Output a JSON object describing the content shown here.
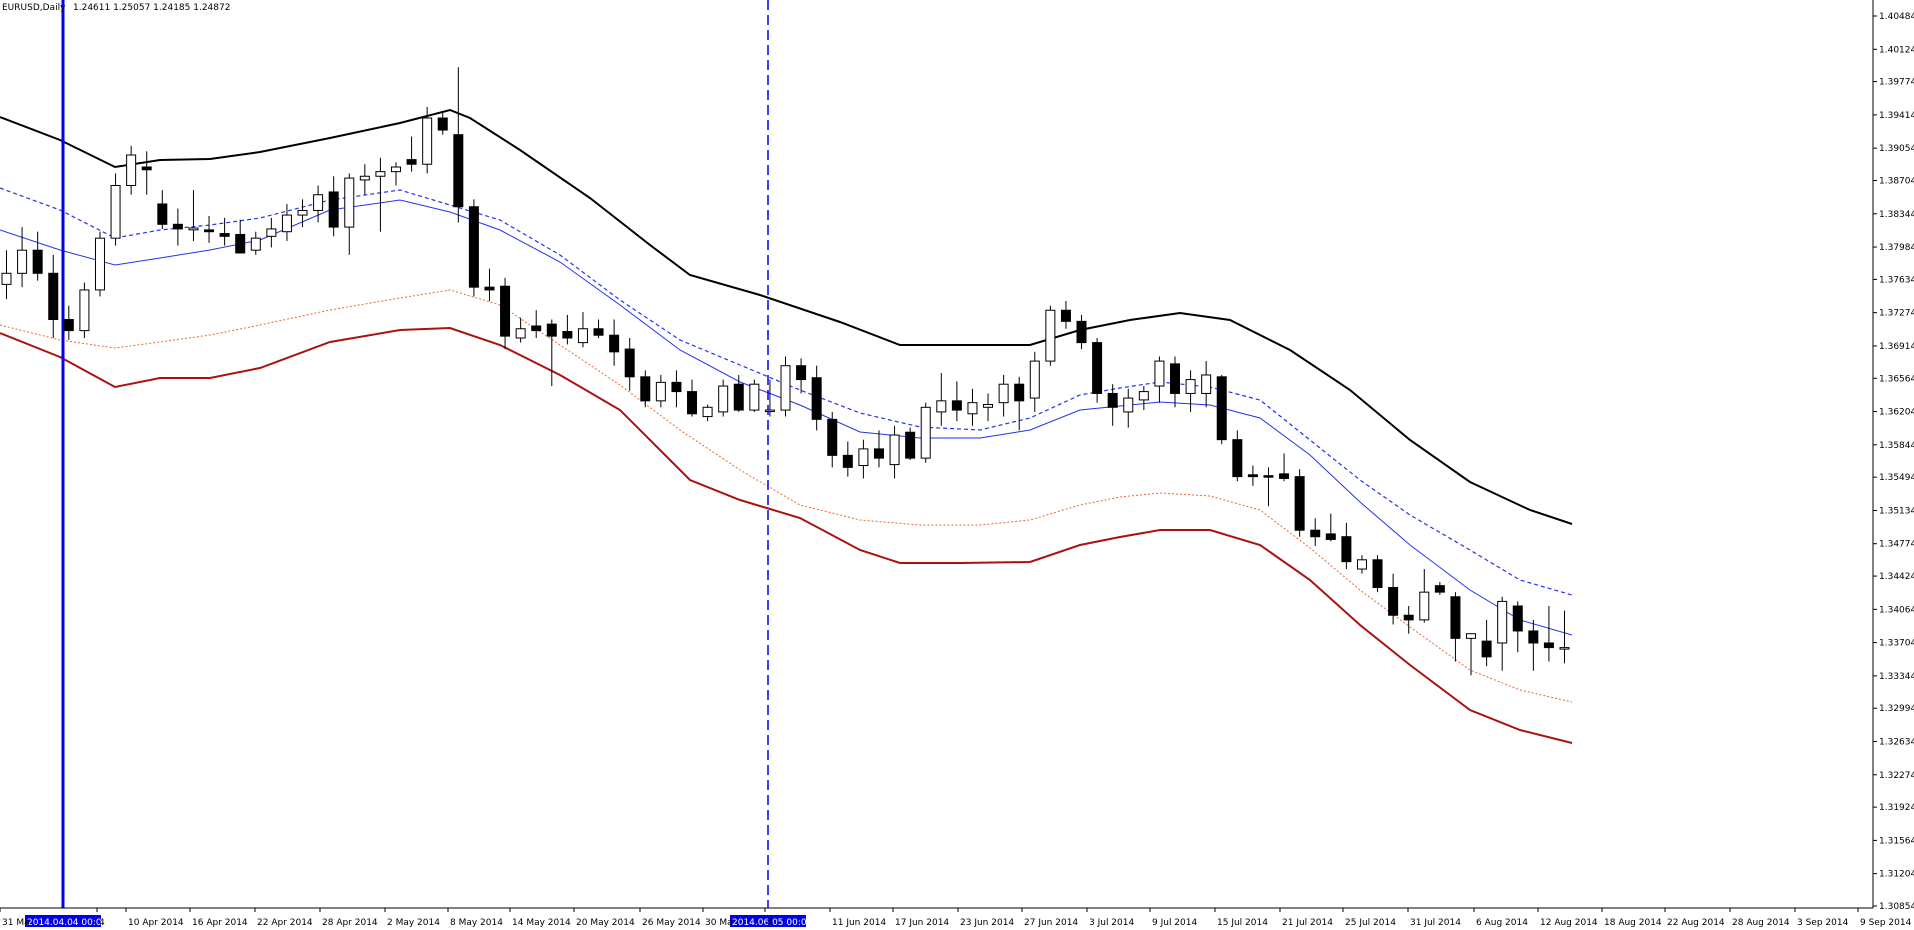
{
  "chart_info": {
    "symbol": "EURUSD,Daily",
    "ohlc": "1.24611 1.25057 1.24185 1.24872"
  },
  "markers": {
    "left_label": "2014.04.04 00:00",
    "right_label": "2014.06.05 00:00"
  },
  "colors": {
    "bull_body": "#ffffff",
    "bear_body": "#000000",
    "upper_band": "#000000",
    "lower_band": "#aa1111",
    "mid_blue": "#2233ee",
    "lower_dotted": "#ee6633",
    "marker": "#0000ee"
  },
  "chart_data": {
    "type": "candlestick",
    "price_axis_ticks": [
      "1.40484",
      "1.40124",
      "1.39774",
      "1.39414",
      "1.39054",
      "1.38704",
      "1.38344",
      "1.37984",
      "1.37634",
      "1.37274",
      "1.36914",
      "1.36564",
      "1.36204",
      "1.35844",
      "1.35494",
      "1.35134",
      "1.34774",
      "1.34424",
      "1.34064",
      "1.33704",
      "1.33344",
      "1.32994",
      "1.32634",
      "1.32274",
      "1.31924",
      "1.31564",
      "1.31204",
      "1.30854"
    ],
    "date_axis_labels": [
      "31 Ma",
      "4",
      "10 Apr 2014",
      "16 Apr 2014",
      "22 Apr 2014",
      "28 Apr 2014",
      "2 May 2014",
      "8 May 2014",
      "14 May 2014",
      "20 May 2014",
      "26 May 2014",
      "30 Ma",
      "4",
      "11 Jun 2014",
      "17 Jun 2014",
      "23 Jun 2014",
      "27 Jun 2014",
      "3 Jul 2014",
      "9 Jul 2014",
      "15 Jul 2014",
      "21 Jul 2014",
      "25 Jul 2014",
      "31 Jul 2014",
      "6 Aug 2014",
      "12 Aug 2014",
      "18 Aug 2014",
      "22 Aug 2014",
      "28 Aug 2014",
      "3 Sep 2014",
      "9 Sep 2014"
    ],
    "candles": [
      {
        "o": 1.3758,
        "h": 1.3795,
        "l": 1.3742,
        "c": 1.377
      },
      {
        "o": 1.377,
        "h": 1.382,
        "l": 1.3755,
        "c": 1.3795
      },
      {
        "o": 1.3795,
        "h": 1.3815,
        "l": 1.3762,
        "c": 1.377
      },
      {
        "o": 1.377,
        "h": 1.379,
        "l": 1.37,
        "c": 1.372
      },
      {
        "o": 1.372,
        "h": 1.3735,
        "l": 1.3698,
        "c": 1.3708
      },
      {
        "o": 1.3708,
        "h": 1.376,
        "l": 1.37,
        "c": 1.3752
      },
      {
        "o": 1.3752,
        "h": 1.3815,
        "l": 1.3745,
        "c": 1.3808
      },
      {
        "o": 1.3808,
        "h": 1.3878,
        "l": 1.38,
        "c": 1.3865
      },
      {
        "o": 1.3865,
        "h": 1.3908,
        "l": 1.3855,
        "c": 1.3898
      },
      {
        "o": 1.3885,
        "h": 1.3902,
        "l": 1.3855,
        "c": 1.3882
      },
      {
        "o": 1.3845,
        "h": 1.386,
        "l": 1.3818,
        "c": 1.3823
      },
      {
        "o": 1.3823,
        "h": 1.384,
        "l": 1.38,
        "c": 1.3818
      },
      {
        "o": 1.3817,
        "h": 1.386,
        "l": 1.3805,
        "c": 1.3819
      },
      {
        "o": 1.3817,
        "h": 1.3832,
        "l": 1.3803,
        "c": 1.3815
      },
      {
        "o": 1.3813,
        "h": 1.383,
        "l": 1.38,
        "c": 1.381
      },
      {
        "o": 1.3812,
        "h": 1.3828,
        "l": 1.3792,
        "c": 1.3792
      },
      {
        "o": 1.3795,
        "h": 1.3815,
        "l": 1.379,
        "c": 1.3808
      },
      {
        "o": 1.381,
        "h": 1.383,
        "l": 1.3798,
        "c": 1.3818
      },
      {
        "o": 1.3815,
        "h": 1.3845,
        "l": 1.3805,
        "c": 1.3833
      },
      {
        "o": 1.3833,
        "h": 1.385,
        "l": 1.382,
        "c": 1.3838
      },
      {
        "o": 1.3838,
        "h": 1.3865,
        "l": 1.3825,
        "c": 1.3855
      },
      {
        "o": 1.3858,
        "h": 1.3875,
        "l": 1.381,
        "c": 1.382
      },
      {
        "o": 1.382,
        "h": 1.3878,
        "l": 1.379,
        "c": 1.3873
      },
      {
        "o": 1.3871,
        "h": 1.3888,
        "l": 1.3855,
        "c": 1.3875
      },
      {
        "o": 1.3875,
        "h": 1.3895,
        "l": 1.3815,
        "c": 1.388
      },
      {
        "o": 1.388,
        "h": 1.389,
        "l": 1.3865,
        "c": 1.3885
      },
      {
        "o": 1.3893,
        "h": 1.3918,
        "l": 1.388,
        "c": 1.3888
      },
      {
        "o": 1.3888,
        "h": 1.395,
        "l": 1.3878,
        "c": 1.3938
      },
      {
        "o": 1.3938,
        "h": 1.3945,
        "l": 1.392,
        "c": 1.3925
      },
      {
        "o": 1.392,
        "h": 1.3993,
        "l": 1.3825,
        "c": 1.3842
      },
      {
        "o": 1.3842,
        "h": 1.385,
        "l": 1.3745,
        "c": 1.3755
      },
      {
        "o": 1.3755,
        "h": 1.3775,
        "l": 1.374,
        "c": 1.3752
      },
      {
        "o": 1.3756,
        "h": 1.3765,
        "l": 1.3688,
        "c": 1.3702
      },
      {
        "o": 1.37,
        "h": 1.3722,
        "l": 1.3695,
        "c": 1.371
      },
      {
        "o": 1.3713,
        "h": 1.373,
        "l": 1.37,
        "c": 1.3708
      },
      {
        "o": 1.3715,
        "h": 1.372,
        "l": 1.3648,
        "c": 1.3702
      },
      {
        "o": 1.3707,
        "h": 1.3725,
        "l": 1.3693,
        "c": 1.37
      },
      {
        "o": 1.3695,
        "h": 1.3728,
        "l": 1.369,
        "c": 1.371
      },
      {
        "o": 1.371,
        "h": 1.372,
        "l": 1.37,
        "c": 1.3703
      },
      {
        "o": 1.3703,
        "h": 1.372,
        "l": 1.367,
        "c": 1.3685
      },
      {
        "o": 1.3688,
        "h": 1.37,
        "l": 1.3643,
        "c": 1.3658
      },
      {
        "o": 1.3658,
        "h": 1.3665,
        "l": 1.3625,
        "c": 1.3632
      },
      {
        "o": 1.3632,
        "h": 1.366,
        "l": 1.3625,
        "c": 1.3652
      },
      {
        "o": 1.3652,
        "h": 1.3665,
        "l": 1.3625,
        "c": 1.3642
      },
      {
        "o": 1.3642,
        "h": 1.3655,
        "l": 1.3615,
        "c": 1.3618
      },
      {
        "o": 1.3615,
        "h": 1.3628,
        "l": 1.361,
        "c": 1.3625
      },
      {
        "o": 1.362,
        "h": 1.3655,
        "l": 1.3615,
        "c": 1.3648
      },
      {
        "o": 1.365,
        "h": 1.366,
        "l": 1.362,
        "c": 1.3622
      },
      {
        "o": 1.3622,
        "h": 1.3655,
        "l": 1.362,
        "c": 1.365
      },
      {
        "o": 1.3622,
        "h": 1.3655,
        "l": 1.3615,
        "c": 1.3622
      },
      {
        "o": 1.3622,
        "h": 1.368,
        "l": 1.3615,
        "c": 1.367
      },
      {
        "o": 1.367,
        "h": 1.3678,
        "l": 1.364,
        "c": 1.3655
      },
      {
        "o": 1.3657,
        "h": 1.367,
        "l": 1.36,
        "c": 1.3612
      },
      {
        "o": 1.3612,
        "h": 1.362,
        "l": 1.356,
        "c": 1.3573
      },
      {
        "o": 1.3573,
        "h": 1.3588,
        "l": 1.355,
        "c": 1.356
      },
      {
        "o": 1.3562,
        "h": 1.359,
        "l": 1.3548,
        "c": 1.358
      },
      {
        "o": 1.358,
        "h": 1.36,
        "l": 1.356,
        "c": 1.357
      },
      {
        "o": 1.3563,
        "h": 1.3605,
        "l": 1.3548,
        "c": 1.3595
      },
      {
        "o": 1.3598,
        "h": 1.3603,
        "l": 1.3568,
        "c": 1.357
      },
      {
        "o": 1.357,
        "h": 1.363,
        "l": 1.3565,
        "c": 1.3625
      },
      {
        "o": 1.362,
        "h": 1.3662,
        "l": 1.3605,
        "c": 1.3632
      },
      {
        "o": 1.3632,
        "h": 1.3653,
        "l": 1.361,
        "c": 1.3622
      },
      {
        "o": 1.3618,
        "h": 1.3645,
        "l": 1.3605,
        "c": 1.363
      },
      {
        "o": 1.3625,
        "h": 1.364,
        "l": 1.361,
        "c": 1.3628
      },
      {
        "o": 1.363,
        "h": 1.366,
        "l": 1.3615,
        "c": 1.365
      },
      {
        "o": 1.365,
        "h": 1.3658,
        "l": 1.36,
        "c": 1.3632
      },
      {
        "o": 1.3635,
        "h": 1.3685,
        "l": 1.362,
        "c": 1.3675
      },
      {
        "o": 1.3675,
        "h": 1.3735,
        "l": 1.367,
        "c": 1.373
      },
      {
        "o": 1.373,
        "h": 1.374,
        "l": 1.371,
        "c": 1.3718
      },
      {
        "o": 1.3718,
        "h": 1.3725,
        "l": 1.3688,
        "c": 1.3695
      },
      {
        "o": 1.3695,
        "h": 1.37,
        "l": 1.363,
        "c": 1.364
      },
      {
        "o": 1.364,
        "h": 1.365,
        "l": 1.3605,
        "c": 1.3625
      },
      {
        "o": 1.362,
        "h": 1.3645,
        "l": 1.3603,
        "c": 1.3635
      },
      {
        "o": 1.3633,
        "h": 1.3648,
        "l": 1.3622,
        "c": 1.3642
      },
      {
        "o": 1.3648,
        "h": 1.368,
        "l": 1.363,
        "c": 1.3675
      },
      {
        "o": 1.3672,
        "h": 1.368,
        "l": 1.3625,
        "c": 1.364
      },
      {
        "o": 1.364,
        "h": 1.3665,
        "l": 1.362,
        "c": 1.3655
      },
      {
        "o": 1.364,
        "h": 1.3675,
        "l": 1.3625,
        "c": 1.366
      },
      {
        "o": 1.3658,
        "h": 1.366,
        "l": 1.3585,
        "c": 1.359
      },
      {
        "o": 1.359,
        "h": 1.36,
        "l": 1.3545,
        "c": 1.355
      },
      {
        "o": 1.3552,
        "h": 1.3562,
        "l": 1.354,
        "c": 1.355
      },
      {
        "o": 1.3551,
        "h": 1.356,
        "l": 1.3518,
        "c": 1.355
      },
      {
        "o": 1.3553,
        "h": 1.3575,
        "l": 1.3545,
        "c": 1.3548
      },
      {
        "o": 1.355,
        "h": 1.3558,
        "l": 1.3485,
        "c": 1.3492
      },
      {
        "o": 1.3492,
        "h": 1.3505,
        "l": 1.3475,
        "c": 1.3485
      },
      {
        "o": 1.3488,
        "h": 1.351,
        "l": 1.348,
        "c": 1.3482
      },
      {
        "o": 1.3485,
        "h": 1.35,
        "l": 1.345,
        "c": 1.3458
      },
      {
        "o": 1.345,
        "h": 1.3465,
        "l": 1.3445,
        "c": 1.346
      },
      {
        "o": 1.346,
        "h": 1.3465,
        "l": 1.3425,
        "c": 1.343
      },
      {
        "o": 1.343,
        "h": 1.3445,
        "l": 1.339,
        "c": 1.34
      },
      {
        "o": 1.34,
        "h": 1.341,
        "l": 1.338,
        "c": 1.3395
      },
      {
        "o": 1.3395,
        "h": 1.345,
        "l": 1.3392,
        "c": 1.3425
      },
      {
        "o": 1.3432,
        "h": 1.3436,
        "l": 1.3422,
        "c": 1.3425
      },
      {
        "o": 1.342,
        "h": 1.3425,
        "l": 1.335,
        "c": 1.3375
      },
      {
        "o": 1.3375,
        "h": 1.338,
        "l": 1.3335,
        "c": 1.338
      },
      {
        "o": 1.3372,
        "h": 1.3395,
        "l": 1.3345,
        "c": 1.3355
      },
      {
        "o": 1.337,
        "h": 1.342,
        "l": 1.334,
        "c": 1.3415
      },
      {
        "o": 1.341,
        "h": 1.3415,
        "l": 1.336,
        "c": 1.3383
      },
      {
        "o": 1.3383,
        "h": 1.3395,
        "l": 1.334,
        "c": 1.337
      },
      {
        "o": 1.337,
        "h": 1.341,
        "l": 1.335,
        "c": 1.3365
      },
      {
        "o": 1.3365,
        "h": 1.3405,
        "l": 1.3348,
        "c": 1.3365
      }
    ]
  }
}
